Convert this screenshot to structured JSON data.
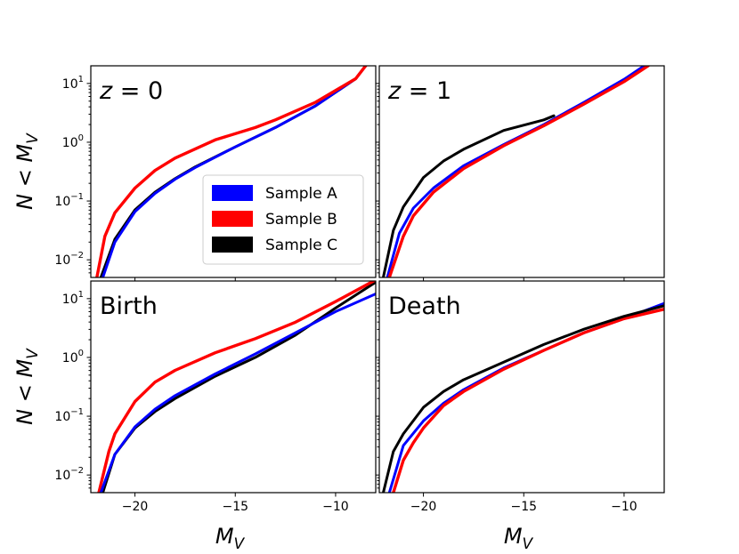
{
  "chart_data": {
    "type": "line",
    "xlim": [
      -22.2,
      -8.0
    ],
    "ylim_log10": [
      -2.3,
      1.3
    ],
    "x_ticks": [
      -20,
      -15,
      -10
    ],
    "x_tick_labels": [
      "−20",
      "−15",
      "−10"
    ],
    "y_ticks_log10": [
      -2,
      -1,
      0,
      1
    ],
    "y_tick_labels": [
      "10−2",
      "10−1",
      "100",
      "101"
    ],
    "xlabel": "M_V",
    "ylabel": "N < M_V",
    "legend": {
      "placement": "lower-right of panel z = 0",
      "entries": [
        "Sample A",
        "Sample B",
        "Sample C"
      ]
    },
    "colors": {
      "Sample A": "#0000ff",
      "Sample B": "#ff0000",
      "Sample C": "#000000"
    },
    "panels": [
      {
        "label_parts": [
          "z",
          " = 0"
        ],
        "series": [
          {
            "name": "Sample C",
            "x": [
              -21.7,
              -21.0,
              -20.0,
              -19.0,
              -18.0,
              -17.0,
              -15.0,
              -13.0,
              -11.0,
              -9.0,
              -8.5
            ],
            "log10y": [
              -2.3,
              -1.65,
              -1.15,
              -0.85,
              -0.62,
              -0.42,
              -0.08,
              0.25,
              0.62,
              1.08,
              1.3
            ]
          },
          {
            "name": "Sample A",
            "x": [
              -21.6,
              -21.0,
              -20.0,
              -19.0,
              -18.0,
              -17.0,
              -15.0,
              -13.0,
              -11.0,
              -9.0,
              -8.5
            ],
            "log10y": [
              -2.3,
              -1.7,
              -1.18,
              -0.87,
              -0.63,
              -0.43,
              -0.08,
              0.25,
              0.62,
              1.08,
              1.3
            ]
          },
          {
            "name": "Sample B",
            "x": [
              -21.9,
              -21.5,
              -21.0,
              -20.0,
              -19.0,
              -18.0,
              -16.0,
              -14.0,
              -13.0,
              -11.0,
              -9.0,
              -8.5
            ],
            "log10y": [
              -2.3,
              -1.6,
              -1.2,
              -0.78,
              -0.48,
              -0.27,
              0.04,
              0.25,
              0.38,
              0.68,
              1.08,
              1.3
            ]
          }
        ]
      },
      {
        "label_parts": [
          "z",
          " = 1"
        ],
        "series": [
          {
            "name": "Sample A",
            "x": [
              -21.8,
              -21.2,
              -20.5,
              -19.5,
              -18.0,
              -16.0,
              -14.0,
              -12.0,
              -10.0,
              -9.0
            ],
            "log10y": [
              -2.3,
              -1.55,
              -1.12,
              -0.78,
              -0.4,
              -0.04,
              0.3,
              0.68,
              1.07,
              1.3
            ]
          },
          {
            "name": "Sample B",
            "x": [
              -21.7,
              -21.0,
              -20.5,
              -19.5,
              -18.0,
              -16.0,
              -14.0,
              -12.0,
              -10.0,
              -8.8
            ],
            "log10y": [
              -2.3,
              -1.6,
              -1.25,
              -0.85,
              -0.45,
              -0.06,
              0.28,
              0.65,
              1.03,
              1.3
            ]
          },
          {
            "name": "Sample C",
            "x": [
              -22.0,
              -21.5,
              -21.0,
              -20.0,
              -19.0,
              -18.0,
              -16.0,
              -14.0,
              -13.5
            ],
            "log10y": [
              -2.3,
              -1.5,
              -1.1,
              -0.6,
              -0.32,
              -0.12,
              0.2,
              0.38,
              0.45
            ]
          }
        ]
      },
      {
        "label_parts": [
          "Birth"
        ],
        "series": [
          {
            "name": "Sample C",
            "x": [
              -21.6,
              -21.0,
              -20.0,
              -19.0,
              -18.0,
              -16.0,
              -14.0,
              -12.0,
              -10.0,
              -8.0
            ],
            "log10y": [
              -2.3,
              -1.65,
              -1.2,
              -0.92,
              -0.7,
              -0.32,
              0.0,
              0.38,
              0.84,
              1.28
            ]
          },
          {
            "name": "Sample B",
            "x": [
              -21.8,
              -21.3,
              -21.0,
              -20.0,
              -19.0,
              -18.0,
              -16.0,
              -14.0,
              -12.0,
              -10.0,
              -8.0
            ],
            "log10y": [
              -2.3,
              -1.6,
              -1.3,
              -0.75,
              -0.42,
              -0.22,
              0.08,
              0.32,
              0.6,
              0.95,
              1.32
            ]
          },
          {
            "name": "Sample A",
            "x": [
              -21.7,
              -21.0,
              -20.0,
              -19.0,
              -18.0,
              -16.0,
              -14.0,
              -12.0,
              -10.0,
              -8.0
            ],
            "log10y": [
              -2.3,
              -1.65,
              -1.18,
              -0.88,
              -0.65,
              -0.28,
              0.06,
              0.42,
              0.78,
              1.08
            ]
          }
        ]
      },
      {
        "label_parts": [
          "Death"
        ],
        "series": [
          {
            "name": "Sample A",
            "x": [
              -21.7,
              -21.0,
              -20.0,
              -19.0,
              -18.0,
              -16.0,
              -14.0,
              -12.0,
              -10.0,
              -8.0
            ],
            "log10y": [
              -2.3,
              -1.5,
              -1.08,
              -0.78,
              -0.55,
              -0.18,
              0.12,
              0.42,
              0.66,
              0.92
            ]
          },
          {
            "name": "Sample B",
            "x": [
              -21.5,
              -21.0,
              -20.5,
              -20.0,
              -19.0,
              -18.0,
              -16.0,
              -14.0,
              -12.0,
              -10.0,
              -8.0
            ],
            "log10y": [
              -2.3,
              -1.75,
              -1.45,
              -1.2,
              -0.82,
              -0.58,
              -0.2,
              0.12,
              0.42,
              0.66,
              0.82
            ]
          },
          {
            "name": "Sample C",
            "x": [
              -22.0,
              -21.5,
              -21.0,
              -20.0,
              -19.0,
              -18.0,
              -16.0,
              -14.0,
              -12.0,
              -10.0,
              -8.0
            ],
            "log10y": [
              -2.3,
              -1.6,
              -1.3,
              -0.85,
              -0.58,
              -0.38,
              -0.08,
              0.22,
              0.48,
              0.7,
              0.88
            ]
          }
        ]
      }
    ]
  }
}
